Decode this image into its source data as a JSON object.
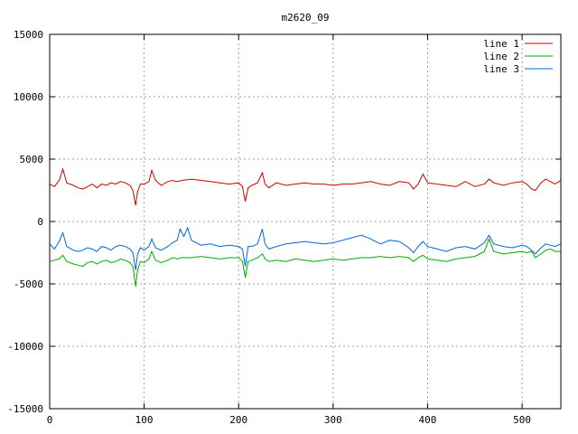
{
  "chart_data": {
    "type": "line",
    "title": "m2620_09",
    "xlabel": "",
    "ylabel": "",
    "xlim": [
      0,
      541
    ],
    "ylim": [
      -15000,
      15000
    ],
    "xticks": [
      0,
      100,
      200,
      300,
      400,
      500
    ],
    "yticks": [
      -15000,
      -10000,
      -5000,
      0,
      5000,
      10000,
      15000
    ],
    "grid": true,
    "legend_position": "top-right",
    "series": [
      {
        "name": "line 1",
        "color": "#cc0000",
        "x": [
          0,
          5,
          10,
          14,
          18,
          25,
          30,
          35,
          40,
          45,
          50,
          55,
          60,
          65,
          70,
          75,
          80,
          85,
          88,
          91,
          93,
          96,
          100,
          105,
          108,
          112,
          118,
          125,
          130,
          135,
          140,
          150,
          160,
          170,
          180,
          190,
          200,
          204,
          207,
          210,
          214,
          220,
          225,
          228,
          232,
          240,
          250,
          260,
          270,
          280,
          290,
          300,
          310,
          320,
          330,
          340,
          350,
          360,
          370,
          380,
          385,
          390,
          395,
          400,
          410,
          420,
          430,
          440,
          450,
          460,
          465,
          470,
          480,
          490,
          500,
          505,
          510,
          514,
          520,
          525,
          530,
          535,
          541
        ],
        "values": [
          3000,
          2800,
          3300,
          4200,
          3100,
          2900,
          2700,
          2600,
          2800,
          3000,
          2700,
          3000,
          2900,
          3100,
          3000,
          3200,
          3100,
          2900,
          2500,
          1300,
          2400,
          3000,
          3000,
          3200,
          4100,
          3300,
          2900,
          3200,
          3300,
          3200,
          3300,
          3400,
          3300,
          3200,
          3100,
          3000,
          3100,
          2800,
          1600,
          2700,
          2900,
          3100,
          3900,
          3000,
          2700,
          3100,
          2900,
          3000,
          3100,
          3000,
          3000,
          2900,
          3000,
          3000,
          3100,
          3200,
          3000,
          2900,
          3200,
          3100,
          2600,
          3000,
          3800,
          3100,
          3000,
          2900,
          2800,
          3200,
          2800,
          3000,
          3400,
          3100,
          2900,
          3100,
          3200,
          3000,
          2600,
          2500,
          3100,
          3400,
          3200,
          3000,
          3300
        ]
      },
      {
        "name": "line 2",
        "color": "#00aa00",
        "x": [
          0,
          5,
          10,
          14,
          18,
          25,
          30,
          35,
          40,
          45,
          50,
          55,
          60,
          65,
          70,
          75,
          80,
          85,
          88,
          91,
          93,
          96,
          100,
          105,
          108,
          112,
          118,
          125,
          130,
          135,
          140,
          150,
          160,
          170,
          180,
          190,
          200,
          204,
          207,
          210,
          214,
          220,
          225,
          228,
          232,
          240,
          250,
          260,
          270,
          280,
          290,
          300,
          310,
          320,
          330,
          340,
          350,
          360,
          370,
          380,
          385,
          390,
          395,
          400,
          410,
          420,
          430,
          440,
          450,
          460,
          465,
          470,
          480,
          490,
          500,
          505,
          510,
          514,
          520,
          525,
          530,
          535,
          541
        ],
        "values": [
          -3200,
          -3100,
          -3000,
          -2700,
          -3200,
          -3400,
          -3500,
          -3600,
          -3300,
          -3200,
          -3400,
          -3200,
          -3100,
          -3300,
          -3200,
          -3000,
          -3100,
          -3300,
          -3600,
          -5200,
          -3900,
          -3200,
          -3300,
          -3000,
          -2400,
          -3100,
          -3300,
          -3100,
          -2900,
          -3000,
          -2900,
          -2900,
          -2800,
          -2900,
          -3000,
          -2900,
          -2900,
          -3200,
          -4500,
          -3200,
          -3100,
          -2900,
          -2600,
          -3000,
          -3200,
          -3100,
          -3200,
          -3000,
          -3100,
          -3200,
          -3100,
          -3000,
          -3100,
          -3000,
          -2900,
          -2900,
          -2800,
          -2900,
          -2800,
          -2900,
          -3200,
          -2900,
          -2700,
          -3000,
          -3100,
          -3200,
          -3000,
          -2900,
          -2800,
          -2400,
          -1400,
          -2400,
          -2600,
          -2500,
          -2400,
          -2500,
          -2400,
          -2900,
          -2600,
          -2300,
          -2200,
          -2400,
          -2400
        ]
      },
      {
        "name": "line 3",
        "color": "#0066dd",
        "x": [
          0,
          5,
          10,
          14,
          18,
          25,
          30,
          35,
          40,
          45,
          50,
          55,
          60,
          65,
          70,
          75,
          80,
          85,
          88,
          91,
          93,
          96,
          100,
          105,
          108,
          112,
          118,
          125,
          130,
          135,
          138,
          142,
          146,
          150,
          160,
          170,
          180,
          190,
          200,
          204,
          207,
          210,
          214,
          220,
          225,
          228,
          232,
          240,
          250,
          260,
          270,
          280,
          290,
          300,
          310,
          320,
          330,
          340,
          350,
          360,
          370,
          380,
          385,
          390,
          395,
          400,
          410,
          420,
          430,
          440,
          450,
          460,
          465,
          470,
          480,
          490,
          500,
          505,
          510,
          514,
          520,
          525,
          530,
          535,
          541
        ],
        "values": [
          -1800,
          -2200,
          -1600,
          -900,
          -2000,
          -2300,
          -2400,
          -2300,
          -2100,
          -2200,
          -2400,
          -2000,
          -2100,
          -2300,
          -2000,
          -1900,
          -2000,
          -2200,
          -2500,
          -3900,
          -2600,
          -2100,
          -2300,
          -2000,
          -1400,
          -2100,
          -2300,
          -2000,
          -1700,
          -1500,
          -600,
          -1200,
          -500,
          -1500,
          -1900,
          -1800,
          -2000,
          -1900,
          -2000,
          -2200,
          -3600,
          -2000,
          -2000,
          -1800,
          -600,
          -1800,
          -2200,
          -2000,
          -1800,
          -1700,
          -1600,
          -1700,
          -1800,
          -1700,
          -1500,
          -1300,
          -1100,
          -1400,
          -1800,
          -1500,
          -1600,
          -2100,
          -2500,
          -2000,
          -1600,
          -2000,
          -2200,
          -2400,
          -2100,
          -2000,
          -2200,
          -1700,
          -1100,
          -1800,
          -2000,
          -2100,
          -1900,
          -2000,
          -2300,
          -2600,
          -2100,
          -1800,
          -1900,
          -2000,
          -1800
        ]
      }
    ]
  }
}
